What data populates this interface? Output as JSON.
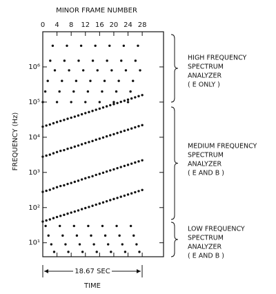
{
  "chart_data": {
    "type": "scatter",
    "x_label": "MINOR FRAME NUMBER",
    "y_label": "FREQUENCY (Hz)",
    "time_span_label": "18.67 SEC",
    "time_label": "TIME",
    "xlim": [
      0,
      34
    ],
    "xticks": [
      0,
      4,
      8,
      12,
      16,
      20,
      24,
      28
    ],
    "ylim": [
      4,
      10000000
    ],
    "y_log": true,
    "yticks": [
      {
        "value": 10,
        "label": "10¹"
      },
      {
        "value": 100,
        "label": "10²"
      },
      {
        "value": 1000,
        "label": "10³"
      },
      {
        "value": 10000,
        "label": "10⁴"
      },
      {
        "value": 100000,
        "label": "10⁵"
      },
      {
        "value": 1000000,
        "label": "10⁶"
      }
    ],
    "color": "#111111",
    "series": [
      {
        "x": [
          0,
          0.7,
          1.4,
          2.1,
          2.8,
          3.4,
          4,
          4.7,
          5.4,
          6.1,
          6.8,
          7.4,
          8,
          8.7,
          9.4,
          10.1,
          10.8,
          11.4,
          12,
          12.7,
          13.4,
          14.1,
          14.8,
          15.4,
          16,
          16.7,
          17.4,
          18.1,
          18.8,
          19.4,
          20,
          20.7,
          21.4,
          22.1,
          22.8,
          23.4,
          24,
          24.7,
          25.4,
          26.1,
          26.8,
          27.4
        ],
        "values": [
          100000,
          200000,
          400000,
          1500000,
          4000000,
          800000,
          100000,
          200000,
          400000,
          1500000,
          4000000,
          800000,
          100000,
          200000,
          400000,
          1500000,
          4000000,
          800000,
          100000,
          200000,
          400000,
          1500000,
          4000000,
          800000,
          100000,
          200000,
          400000,
          1500000,
          4000000,
          800000,
          100000,
          200000,
          400000,
          1500000,
          4000000,
          800000,
          100000,
          200000,
          400000,
          1500000,
          4000000,
          800000
        ]
      },
      {
        "x": [
          0,
          1,
          2,
          3,
          4,
          5,
          6,
          7,
          8,
          9,
          10,
          11,
          12,
          13,
          14,
          15,
          16,
          17,
          18,
          19,
          20,
          21,
          22,
          23,
          24,
          25,
          26,
          27,
          28
        ],
        "values": [
          20000,
          21500,
          23000,
          25000,
          27000,
          29000,
          31000,
          33500,
          36000,
          38500,
          41500,
          45000,
          48500,
          52000,
          56000,
          60500,
          65000,
          70000,
          75500,
          81500,
          87500,
          94000,
          101500,
          109000,
          117500,
          126500,
          136500,
          147000,
          158000
        ]
      },
      {
        "x": [
          0,
          1,
          2,
          3,
          4,
          5,
          6,
          7,
          8,
          9,
          10,
          11,
          12,
          13,
          14,
          15,
          16,
          17,
          18,
          19,
          20,
          21,
          22,
          23,
          24,
          25,
          26,
          27,
          28
        ],
        "values": [
          2800,
          3000,
          3200,
          3500,
          3800,
          4100,
          4300,
          4700,
          5000,
          5400,
          5800,
          6300,
          6800,
          7300,
          7800,
          8500,
          9100,
          9800,
          10600,
          11400,
          12200,
          13200,
          14200,
          15300,
          16400,
          17700,
          19100,
          20600,
          22100
        ]
      },
      {
        "x": [
          0,
          1,
          2,
          3,
          4,
          5,
          6,
          7,
          8,
          9,
          10,
          11,
          12,
          13,
          14,
          15,
          16,
          17,
          18,
          19,
          20,
          21,
          22,
          23,
          24,
          25,
          26,
          27,
          28
        ],
        "values": [
          280,
          300,
          320,
          350,
          380,
          410,
          430,
          470,
          500,
          540,
          580,
          630,
          680,
          730,
          780,
          850,
          910,
          980,
          1060,
          1140,
          1220,
          1320,
          1420,
          1530,
          1640,
          1770,
          1910,
          2060,
          2210
        ]
      },
      {
        "x": [
          0,
          1,
          2,
          3,
          4,
          5,
          6,
          7,
          8,
          9,
          10,
          11,
          12,
          13,
          14,
          15,
          16,
          17,
          18,
          19,
          20,
          21,
          22,
          23,
          24,
          25,
          26,
          27,
          28
        ],
        "values": [
          40,
          43,
          46,
          50,
          54,
          58,
          62,
          67,
          72,
          77,
          83,
          90,
          97,
          104,
          112,
          121,
          130,
          140,
          151,
          163,
          175,
          188,
          203,
          218,
          235,
          253,
          273,
          294,
          316
        ]
      },
      {
        "x": [
          0.8,
          1.6,
          2.4,
          3.2,
          4.8,
          5.6,
          6.4,
          7.2,
          8.8,
          9.6,
          10.4,
          11.2,
          12.8,
          13.6,
          14.4,
          15.2,
          16.8,
          17.6,
          18.4,
          19.2,
          20.8,
          21.6,
          22.4,
          23.2,
          24.8,
          25.6,
          26.4,
          27.2
        ],
        "values": [
          30,
          16,
          9,
          5.5,
          30,
          16,
          9,
          5.5,
          30,
          16,
          9,
          5.5,
          30,
          16,
          9,
          5.5,
          30,
          16,
          9,
          5.5,
          30,
          16,
          9,
          5.5,
          30,
          16,
          9,
          5.5
        ]
      }
    ],
    "annotations": [
      {
        "lines": [
          "HIGH FREQUENCY",
          "SPECTRUM",
          "ANALYZER",
          "( E ONLY )"
        ]
      },
      {
        "lines": [
          "MEDIUM FREQUENCY",
          "SPECTRUM",
          "ANALYZER",
          "( E AND B )"
        ]
      },
      {
        "lines": [
          "LOW FREQUENCY",
          "SPECTRUM",
          "ANALYZER",
          "( E AND B )"
        ]
      }
    ]
  }
}
